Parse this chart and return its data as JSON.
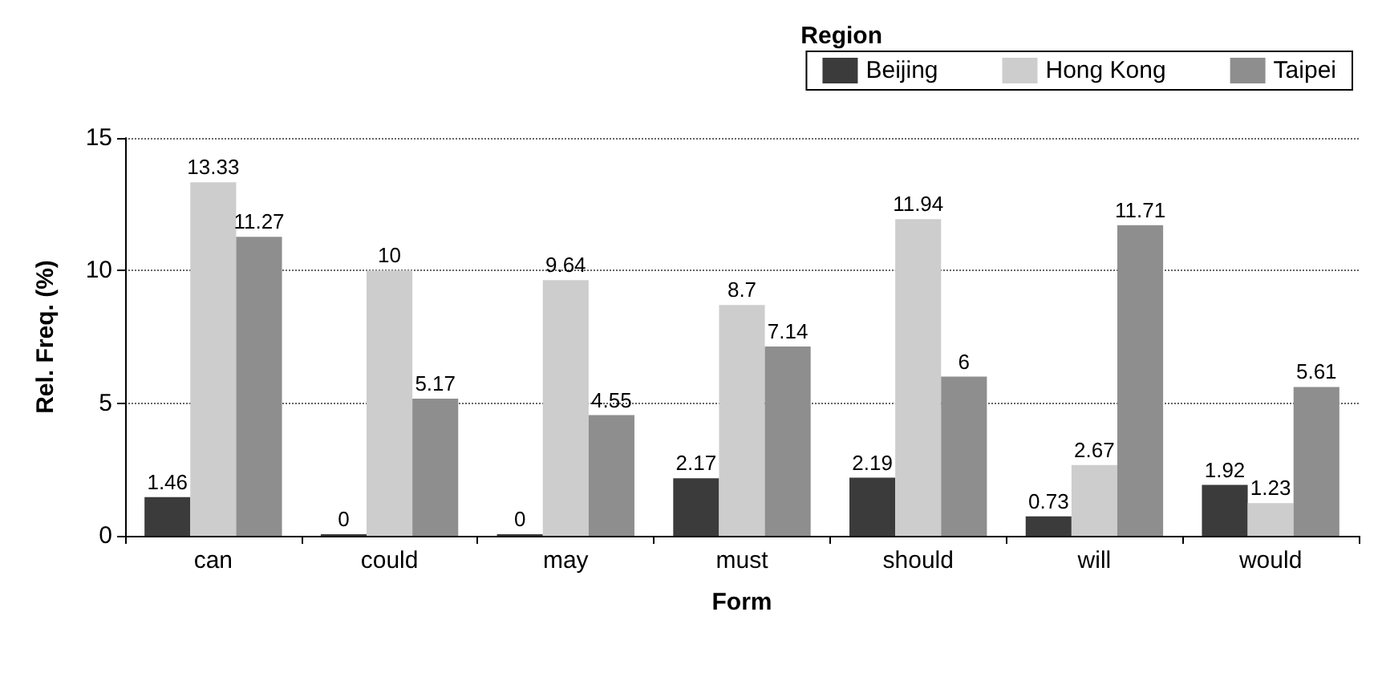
{
  "chart_data": {
    "type": "bar",
    "xlabel": "Form",
    "ylabel": "Rel. Freq. (%)",
    "legend_title": "Region",
    "categories": [
      "can",
      "could",
      "may",
      "must",
      "should",
      "will",
      "would"
    ],
    "series": [
      {
        "name": "Beijing",
        "color": "#3b3b3b",
        "values": [
          1.46,
          0,
          0,
          2.17,
          2.19,
          0.73,
          1.92
        ]
      },
      {
        "name": "Hong Kong",
        "color": "#cdcdcd",
        "values": [
          13.33,
          10,
          9.64,
          8.7,
          11.94,
          2.67,
          1.23
        ]
      },
      {
        "name": "Taipei",
        "color": "#8e8e8e",
        "values": [
          11.27,
          5.17,
          4.55,
          7.14,
          6,
          11.71,
          5.61
        ]
      }
    ],
    "ylim": [
      0,
      15
    ],
    "yticks": [
      0,
      5,
      10,
      15
    ],
    "grid": "y",
    "legend": "top right",
    "data_labels": true
  }
}
